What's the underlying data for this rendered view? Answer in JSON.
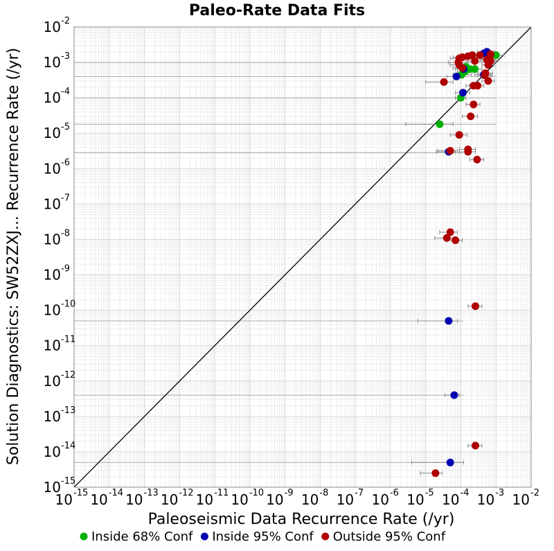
{
  "chart_data": {
    "type": "scatter",
    "title": "Paleo-Rate Data Fits",
    "xlabel": "Paleoseismic Data Recurrence Rate (/yr)",
    "ylabel": "Solution Diagnostics: SW52ZXJ... Recurrence Rate (/yr)",
    "x_scale": "log",
    "y_scale": "log",
    "xlim": [
      1e-15,
      0.01
    ],
    "ylim": [
      1e-15,
      0.01
    ],
    "x_tick_exponents": [
      -15,
      -14,
      -13,
      -12,
      -11,
      -10,
      -9,
      -8,
      -7,
      -6,
      -5,
      -4,
      -3,
      -2
    ],
    "y_tick_exponents": [
      -15,
      -14,
      -13,
      -12,
      -11,
      -10,
      -9,
      -8,
      -7,
      -6,
      -5,
      -4,
      -3,
      -2
    ],
    "tick_base": "10",
    "grid": true,
    "reference_line": "y = x",
    "legend_position": "bottom",
    "series": [
      {
        "name": "Inside 68% Conf",
        "color": "#00b000",
        "points": [
          {
            "x": 2.5e-05,
            "y": 1.8e-05,
            "xlo": 2.7e-06,
            "xhi": 6e-05
          },
          {
            "x": 0.0001,
            "y": 0.0001,
            "xlo": 7e-05,
            "xhi": 0.00014
          },
          {
            "x": 0.000105,
            "y": 0.00045,
            "xlo": 6e-05,
            "xhi": 0.0002
          },
          {
            "x": 0.00013,
            "y": 0.00055,
            "xlo": 8e-05,
            "xhi": 0.00022
          },
          {
            "x": 0.00018,
            "y": 0.00065,
            "xlo": 0.0001,
            "xhi": 0.0003
          },
          {
            "x": 0.00025,
            "y": 0.00065,
            "xlo": 0.00015,
            "xhi": 0.0004
          },
          {
            "x": 0.00014,
            "y": 0.00075,
            "xlo": 9e-05,
            "xhi": 0.00025
          },
          {
            "x": 0.001,
            "y": 0.0016,
            "xlo": 0.0006,
            "xhi": 0.0017
          }
        ]
      },
      {
        "name": "Inside 95% Conf",
        "color": "#0000b0",
        "points": [
          {
            "x": 7.5e-05,
            "y": 0.0004,
            "xlo": 4e-05,
            "xhi": 0.00012
          },
          {
            "x": 0.000115,
            "y": 0.00014,
            "xlo": 7e-05,
            "xhi": 0.00018
          },
          {
            "x": 0.00012,
            "y": 0.00065,
            "xlo": 7e-05,
            "xhi": 0.0002
          },
          {
            "x": 0.00045,
            "y": 0.00045,
            "xlo": 0.00025,
            "xhi": 0.0007
          },
          {
            "x": 0.00045,
            "y": 0.0018,
            "xlo": 0.00025,
            "xhi": 0.0007
          },
          {
            "x": 0.00055,
            "y": 0.002,
            "xlo": 0.0003,
            "xhi": 0.0009
          },
          {
            "x": 4.5e-05,
            "y": 3e-06,
            "xlo": 2e-05,
            "xhi": 7e-05
          },
          {
            "x": 4.5e-05,
            "y": 5e-11,
            "xlo": 6e-06,
            "xhi": 8e-05
          },
          {
            "x": 6.5e-05,
            "y": 4e-13,
            "xlo": 3.5e-05,
            "xhi": 9e-05
          },
          {
            "x": 5e-05,
            "y": 5e-15,
            "xlo": 4e-06,
            "xhi": 0.00012
          }
        ]
      },
      {
        "name": "Outside 95% Conf",
        "color": "#b00000",
        "points": [
          {
            "x": 9e-05,
            "y": 0.0013,
            "xlo": 5e-05,
            "xhi": 0.00016
          },
          {
            "x": 0.00011,
            "y": 0.0014,
            "xlo": 6e-05,
            "xhi": 0.0002
          },
          {
            "x": 0.00016,
            "y": 0.0015,
            "xlo": 9e-05,
            "xhi": 0.00028
          },
          {
            "x": 0.00021,
            "y": 0.0016,
            "xlo": 0.00012,
            "xhi": 0.00035
          },
          {
            "x": 0.00035,
            "y": 0.0016,
            "xlo": 0.0002,
            "xhi": 0.00055
          },
          {
            "x": 8.5e-05,
            "y": 0.001,
            "xlo": 4.5e-05,
            "xhi": 0.00016
          },
          {
            "x": 9e-05,
            "y": 0.00085,
            "xlo": 5e-05,
            "xhi": 0.00016
          },
          {
            "x": 0.00025,
            "y": 0.0011,
            "xlo": 0.00014,
            "xhi": 0.0004
          },
          {
            "x": 0.00011,
            "y": 0.0007,
            "xlo": 6e-05,
            "xhi": 0.0002
          },
          {
            "x": 0.0007,
            "y": 0.0017,
            "xlo": 0.00045,
            "xhi": 0.001
          },
          {
            "x": 0.00065,
            "y": 0.0013,
            "xlo": 0.0004,
            "xhi": 0.00095
          },
          {
            "x": 0.00055,
            "y": 0.0012,
            "xlo": 0.00035,
            "xhi": 0.00085
          },
          {
            "x": 0.0007,
            "y": 0.0011,
            "xlo": 0.00045,
            "xhi": 0.001
          },
          {
            "x": 0.0006,
            "y": 0.00085,
            "xlo": 0.0004,
            "xhi": 0.0009
          },
          {
            "x": 0.0005,
            "y": 0.0005,
            "xlo": 0.0003,
            "xhi": 0.0008
          },
          {
            "x": 0.00048,
            "y": 0.00043,
            "xlo": 0.0003,
            "xhi": 0.00075
          },
          {
            "x": 0.0006,
            "y": 0.0003,
            "xlo": 0.0004,
            "xhi": 0.0009
          },
          {
            "x": 0.00023,
            "y": 0.00022,
            "xlo": 0.00014,
            "xhi": 0.00035
          },
          {
            "x": 0.0003,
            "y": 0.00022,
            "xlo": 0.00018,
            "xhi": 0.00045
          },
          {
            "x": 3.3e-05,
            "y": 0.00028,
            "xlo": 1e-05,
            "xhi": 6e-05
          },
          {
            "x": 0.00023,
            "y": 6.5e-05,
            "xlo": 0.00014,
            "xhi": 0.00035
          },
          {
            "x": 0.00019,
            "y": 3e-05,
            "xlo": 0.00011,
            "xhi": 0.0003
          },
          {
            "x": 9e-05,
            "y": 9e-06,
            "xlo": 5e-05,
            "xhi": 0.00015
          },
          {
            "x": 0.00016,
            "y": 3.5e-06,
            "xlo": 9e-05,
            "xhi": 0.00026
          },
          {
            "x": 0.00016,
            "y": 3e-06,
            "xlo": 9e-05,
            "xhi": 0.00026
          },
          {
            "x": 5e-05,
            "y": 3.2e-06,
            "xlo": 2.2e-05,
            "xhi": 8e-05
          },
          {
            "x": 0.00029,
            "y": 1.8e-06,
            "xlo": 0.00018,
            "xhi": 0.00045
          },
          {
            "x": 5e-05,
            "y": 1.6e-08,
            "xlo": 2.5e-05,
            "xhi": 8e-05
          },
          {
            "x": 4e-05,
            "y": 1.1e-08,
            "xlo": 1.8e-05,
            "xhi": 6.5e-05
          },
          {
            "x": 7e-05,
            "y": 9.5e-09,
            "xlo": 4e-05,
            "xhi": 0.00011
          },
          {
            "x": 0.00026,
            "y": 1.3e-10,
            "xlo": 0.00016,
            "xhi": 0.0004
          },
          {
            "x": 0.00026,
            "y": 1.5e-14,
            "xlo": 0.00016,
            "xhi": 0.0004
          },
          {
            "x": 1.9e-05,
            "y": 2.5e-15,
            "xlo": 7e-06,
            "xhi": 3e-05
          }
        ]
      }
    ],
    "horizontal_reference_lines": [
      0.001,
      0.0004,
      0.0001,
      1.8e-05,
      2.8e-06,
      5e-11,
      4e-13,
      5e-15
    ]
  }
}
